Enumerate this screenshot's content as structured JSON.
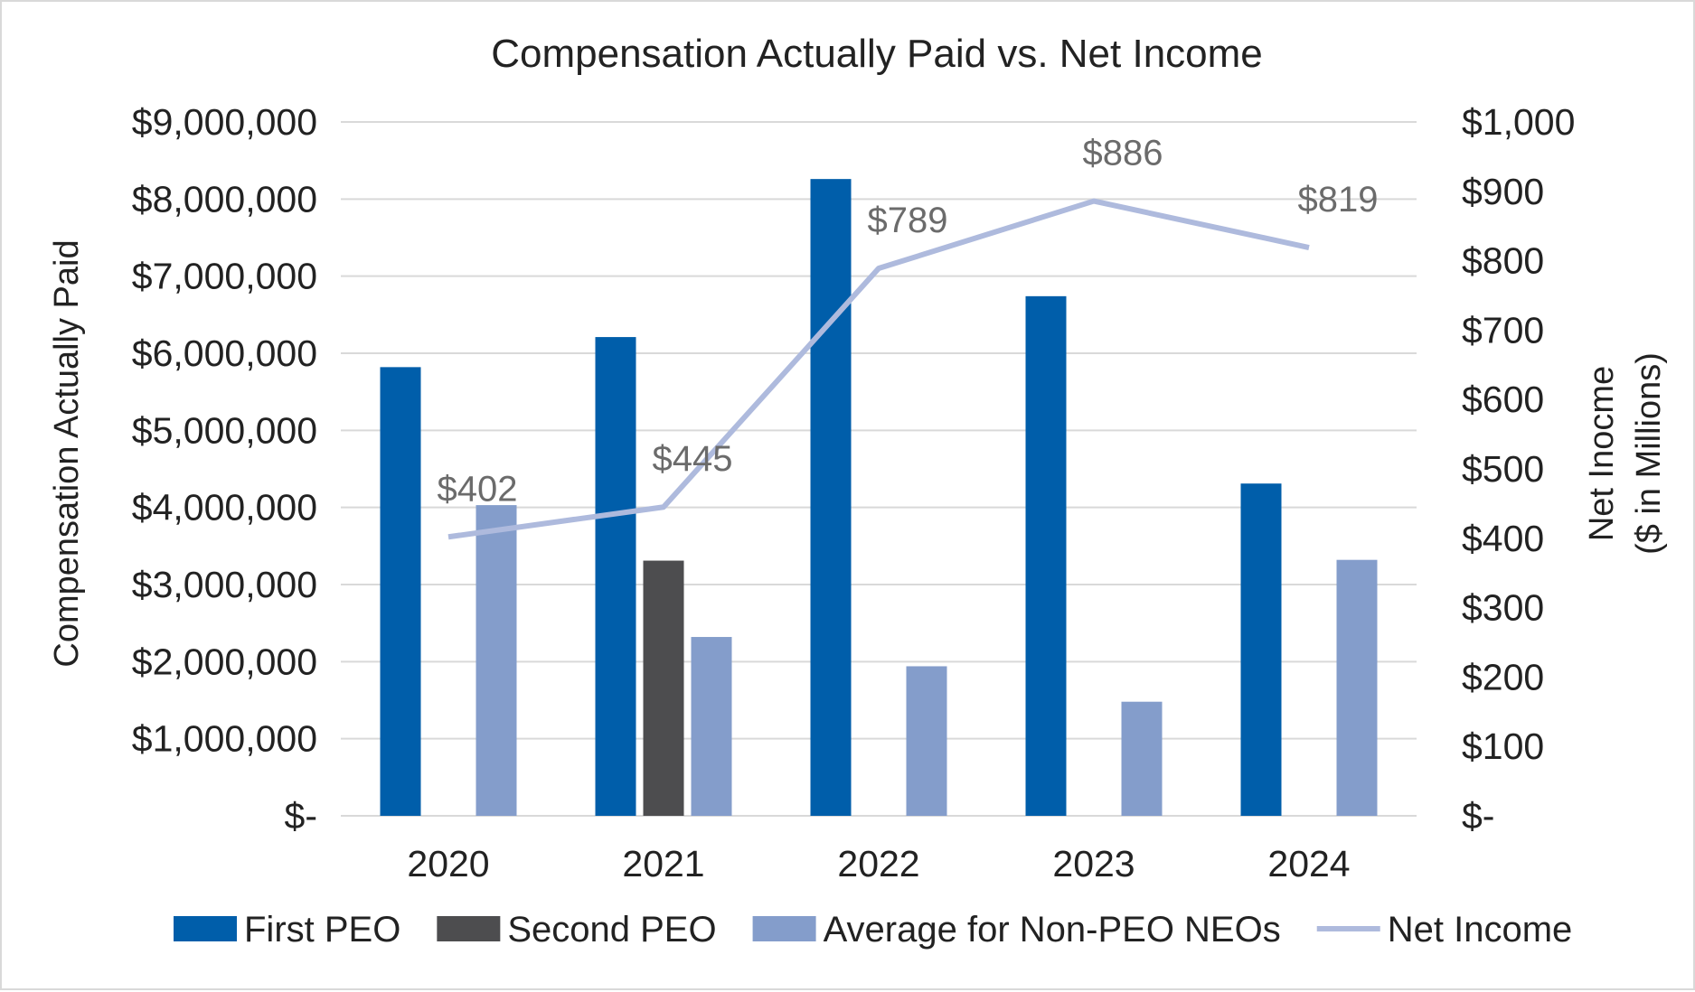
{
  "chart_data": {
    "type": "bar",
    "title": "Compensation Actually Paid vs. Net Income",
    "ylabel": "Compensation Actually Paid",
    "y2label_line1": "Net Inocme",
    "y2label_line2": "($ in Millions)",
    "categories": [
      "2020",
      "2021",
      "2022",
      "2023",
      "2024"
    ],
    "ylim": [
      0,
      9000000
    ],
    "y2lim": [
      0,
      1000
    ],
    "yticks": [
      "$-",
      "$1,000,000",
      "$2,000,000",
      "$3,000,000",
      "$4,000,000",
      "$5,000,000",
      "$6,000,000",
      "$7,000,000",
      "$8,000,000",
      "$9,000,000"
    ],
    "y2ticks": [
      "$-",
      "$100",
      "$200",
      "$300",
      "$400",
      "$500",
      "$600",
      "$700",
      "$800",
      "$900",
      "$1,000"
    ],
    "grid": true,
    "legend_position": "bottom",
    "series": [
      {
        "name": "First PEO",
        "kind": "bar",
        "axis": "left",
        "color": "#005eaa",
        "values": [
          5820000,
          6210000,
          8260000,
          6740000,
          4310000
        ]
      },
      {
        "name": "Second PEO",
        "kind": "bar",
        "axis": "left",
        "color": "#4d4d4f",
        "values": [
          null,
          3310000,
          null,
          null,
          null
        ]
      },
      {
        "name": "Average for Non-PEO NEOs",
        "kind": "bar",
        "axis": "left",
        "color": "#849dcb",
        "values": [
          4030000,
          2320000,
          1940000,
          1480000,
          3320000
        ]
      },
      {
        "name": "Net Income",
        "kind": "line",
        "axis": "right",
        "color": "#aebadd",
        "values": [
          402,
          445,
          789,
          886,
          819
        ],
        "labels": [
          "$402",
          "$445",
          "$789",
          "$886",
          "$819"
        ]
      }
    ]
  }
}
